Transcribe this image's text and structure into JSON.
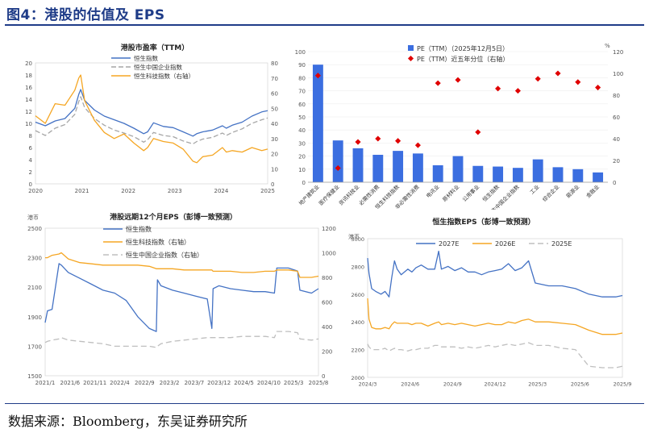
{
  "figure": {
    "title": "图4：港股的估值及 EPS",
    "source": "数据来源：Bloomberg，东吴证券研究所"
  },
  "chart_data": [
    {
      "id": "pe",
      "type": "line",
      "title": "港股市盈率（TTM）",
      "x_ticks": [
        "2020",
        "2021",
        "2022",
        "2023",
        "2024",
        "2025"
      ],
      "x": [
        2020.0,
        2020.25,
        2020.5,
        2020.75,
        2021.0,
        2021.1,
        2021.15,
        2021.25,
        2021.5,
        2021.75,
        2022.0,
        2022.25,
        2022.5,
        2022.75,
        2022.85,
        2023.0,
        2023.25,
        2023.5,
        2023.75,
        2024.0,
        2024.1,
        2024.25,
        2024.5,
        2024.75,
        2024.85,
        2025.0,
        2025.25,
        2025.5,
        2025.75,
        2025.9
      ],
      "series": [
        {
          "name": "恒生指数",
          "axis": "left",
          "color": "#4472C4",
          "dash": "",
          "values": [
            10.2,
            9.6,
            10.4,
            10.8,
            12.5,
            14.8,
            15.6,
            13.8,
            12.2,
            11.2,
            10.6,
            10.0,
            9.2,
            8.3,
            8.6,
            10.1,
            9.5,
            9.3,
            8.6,
            7.9,
            8.3,
            8.6,
            8.9,
            9.6,
            9.2,
            9.7,
            10.2,
            11.2,
            11.9,
            12.1
          ]
        },
        {
          "name": "恒生中国企业指数",
          "axis": "left",
          "color": "#A6A6A6",
          "dash": "6,3",
          "values": [
            8.8,
            8.0,
            9.2,
            9.8,
            11.5,
            13.6,
            14.4,
            12.6,
            10.8,
            9.7,
            8.9,
            8.4,
            7.8,
            6.9,
            7.3,
            8.5,
            8.0,
            7.8,
            7.1,
            6.6,
            7.0,
            7.4,
            7.7,
            8.4,
            8.0,
            8.5,
            9.1,
            10.0,
            10.6,
            10.9
          ]
        },
        {
          "name": "恒生科技指数（右轴）",
          "axis": "right",
          "color": "#F5A623",
          "dash": "",
          "values": [
            45,
            40,
            53,
            52,
            62,
            70,
            72,
            55,
            42,
            34,
            30,
            33,
            27,
            22,
            24,
            30,
            28,
            27,
            23,
            15,
            14,
            18,
            19,
            24,
            21,
            22,
            21,
            24,
            22,
            23
          ]
        }
      ],
      "ylim_left": [
        0,
        20
      ],
      "yticks_left": [
        0,
        2,
        4,
        6,
        8,
        10,
        12,
        14,
        16,
        18,
        20
      ],
      "ylim_right": [
        0,
        80
      ],
      "yticks_right": [
        0,
        10,
        20,
        30,
        40,
        50,
        60,
        70,
        80
      ],
      "legend": "top-left"
    },
    {
      "id": "pe_pct",
      "type": "bar",
      "legend_items": [
        "PE（TTM）（2025年12月5日）",
        "PE（TTM）近五年分位（右轴）"
      ],
      "categories": [
        "地产建筑业",
        "医疗保健业",
        "资讯科技业",
        "必需性消费",
        "恒生科技指数",
        "非必需性消费",
        "电讯业",
        "原材料业",
        "公用事业",
        "恒生指数",
        "恒生中国企业指数",
        "工业",
        "综合企业",
        "能源业",
        "金融业"
      ],
      "series": [
        {
          "name": "PE（TTM）（2025年12月5日）",
          "axis": "left",
          "color": "#3B6EE0",
          "values": [
            90,
            32,
            26,
            21,
            24,
            22,
            13,
            20,
            12.5,
            12,
            11,
            17.5,
            11.5,
            10,
            7.5
          ]
        },
        {
          "name": "PE（TTM）近五年分位（右轴）",
          "axis": "right",
          "color": "#E00000",
          "values": [
            98,
            13,
            37,
            40,
            38,
            34,
            91,
            94,
            46,
            86,
            84,
            95,
            100,
            92,
            87
          ]
        }
      ],
      "ylim_left": [
        0,
        100
      ],
      "yticks_left": [
        0,
        10,
        20,
        30,
        40,
        50,
        60,
        70,
        80,
        90,
        100
      ],
      "ylim_right": [
        0,
        120
      ],
      "yticks_right": [
        0,
        20,
        40,
        60,
        80,
        100,
        120
      ],
      "right_unit": "%",
      "legend": "top-center"
    },
    {
      "id": "eps12",
      "type": "line",
      "title": "港股远期12个月EPS（彭博一致预测）",
      "y_unit": "港币",
      "x_ticks": [
        "2021/1",
        "2021/6",
        "2021/11",
        "2022/4",
        "2022/9",
        "2023/2",
        "2023/7",
        "2023/12",
        "2024/5",
        "2024/10",
        "2025/3",
        "2025/8"
      ],
      "x": [
        0,
        0.1,
        0.3,
        0.6,
        0.7,
        1.0,
        1.5,
        2.0,
        2.5,
        3.0,
        3.5,
        4.0,
        4.5,
        4.8,
        4.85,
        5.0,
        5.5,
        6.0,
        6.5,
        7.0,
        7.2,
        7.25,
        7.5,
        8.0,
        8.5,
        9.0,
        9.5,
        9.9,
        10.0,
        10.5,
        10.9,
        11.0,
        11.5,
        11.8
      ],
      "series": [
        {
          "name": "恒生指数",
          "axis": "left",
          "color": "#4472C4",
          "dash": "",
          "values": [
            1860,
            1940,
            1950,
            2260,
            2250,
            2200,
            2160,
            2120,
            2080,
            2060,
            2010,
            1900,
            1820,
            1800,
            2150,
            2110,
            2080,
            2060,
            2040,
            2020,
            1820,
            2090,
            2110,
            2090,
            2080,
            2070,
            2070,
            2060,
            2230,
            2230,
            2210,
            2080,
            2060,
            2090
          ]
        },
        {
          "name": "恒生科技指数（右轴）",
          "axis": "right",
          "color": "#F5A623",
          "dash": "",
          "values": [
            960,
            960,
            980,
            990,
            1000,
            950,
            920,
            910,
            900,
            900,
            900,
            900,
            890,
            870,
            870,
            870,
            870,
            860,
            860,
            860,
            860,
            850,
            850,
            850,
            840,
            840,
            850,
            850,
            860,
            860,
            850,
            800,
            800,
            810
          ]
        },
        {
          "name": "恒生中国企业指数（右轴）",
          "axis": "right",
          "color": "#BFBFBF",
          "dash": "7,4",
          "values": [
            270,
            280,
            290,
            300,
            310,
            290,
            280,
            270,
            260,
            240,
            240,
            240,
            240,
            230,
            240,
            260,
            280,
            290,
            300,
            310,
            310,
            310,
            310,
            310,
            320,
            320,
            320,
            310,
            360,
            360,
            350,
            300,
            290,
            300
          ]
        }
      ],
      "ylim_left": [
        1500,
        2500
      ],
      "yticks_left": [
        1500,
        1700,
        1900,
        2100,
        2300,
        2500
      ],
      "ylim_right": [
        0,
        1200
      ],
      "yticks_right": [
        0,
        200,
        400,
        600,
        800,
        1000,
        1200
      ],
      "legend": "top-left"
    },
    {
      "id": "hsi_eps",
      "type": "line",
      "title": "恒生指数EPS（彭博一致预测）",
      "y_unit": "港币",
      "x_ticks": [
        "2024/3",
        "2024/6",
        "2024/9",
        "2024/12",
        "2025/3",
        "2025/6",
        "2025/9"
      ],
      "x": [
        0,
        0.1,
        0.3,
        0.6,
        1.0,
        1.3,
        1.6,
        1.8,
        2.0,
        2.2,
        2.5,
        3.0,
        3.3,
        3.6,
        4.0,
        4.5,
        5.0,
        5.3,
        5.5,
        6.0,
        6.5,
        7.0,
        7.5,
        8.0,
        8.5,
        9.0,
        9.5,
        10.0,
        10.5,
        11.0,
        11.5,
        12.0,
        12.5,
        13.5,
        14.5,
        15.5,
        16.5,
        17.5,
        18.5,
        19.0
      ],
      "series": [
        {
          "name": "2027E",
          "axis": "left",
          "color": "#4472C4",
          "dash": "",
          "values": [
            2860,
            2750,
            2640,
            2620,
            2600,
            2620,
            2580,
            2720,
            2840,
            2780,
            2740,
            2780,
            2760,
            2790,
            2810,
            2780,
            2780,
            2910,
            2780,
            2800,
            2770,
            2790,
            2760,
            2760,
            2740,
            2760,
            2770,
            2780,
            2820,
            2770,
            2790,
            2840,
            2680,
            2660,
            2660,
            2640,
            2600,
            2580,
            2580,
            2590
          ]
        },
        {
          "name": "2026E",
          "axis": "left",
          "color": "#F5A623",
          "dash": "",
          "values": [
            2570,
            2420,
            2360,
            2350,
            2350,
            2360,
            2350,
            2380,
            2400,
            2390,
            2390,
            2390,
            2380,
            2390,
            2390,
            2370,
            2390,
            2400,
            2380,
            2390,
            2380,
            2390,
            2380,
            2370,
            2380,
            2390,
            2380,
            2380,
            2400,
            2390,
            2410,
            2420,
            2400,
            2400,
            2390,
            2380,
            2340,
            2310,
            2310,
            2320
          ]
        },
        {
          "name": "2025E",
          "axis": "left",
          "color": "#BFBFBF",
          "dash": "7,4",
          "values": [
            2240,
            2220,
            2200,
            2200,
            2200,
            2210,
            2190,
            2200,
            2210,
            2200,
            2200,
            2190,
            2200,
            2200,
            2210,
            2210,
            2230,
            2230,
            2220,
            2220,
            2220,
            2210,
            2220,
            2210,
            2220,
            2230,
            2220,
            2230,
            2240,
            2230,
            2240,
            2250,
            2230,
            2230,
            2210,
            2200,
            2080,
            2070,
            2070,
            2080
          ]
        }
      ],
      "ylim_left": [
        2000,
        3000
      ],
      "yticks_left": [
        2000,
        2200,
        2400,
        2600,
        2800,
        3000
      ],
      "legend": "top-left"
    }
  ]
}
